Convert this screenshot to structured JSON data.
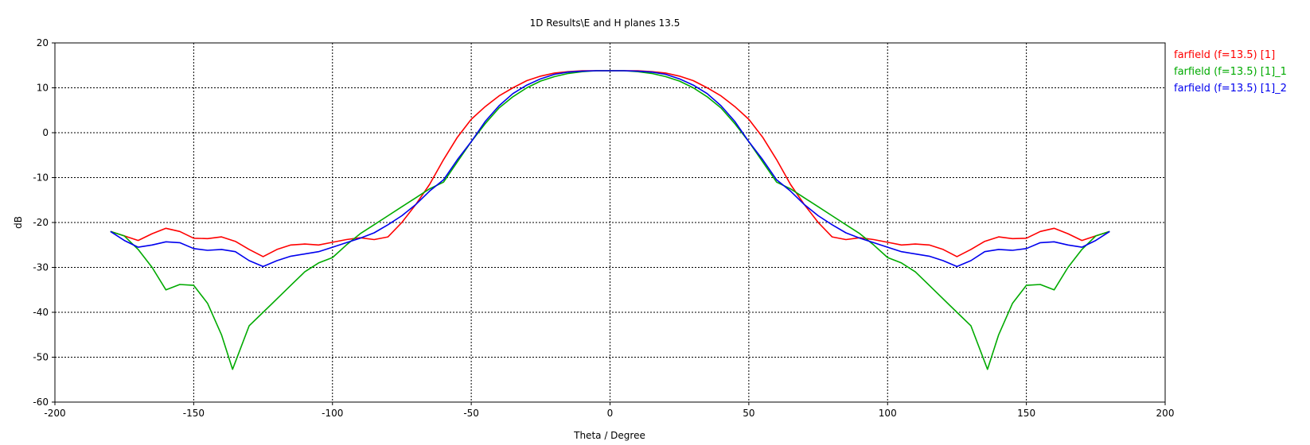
{
  "chart_data": {
    "type": "line",
    "title": "1D Results\\E and H planes 13.5",
    "xlabel": "Theta / Degree",
    "ylabel": "dB",
    "xlim": [
      -200,
      200
    ],
    "ylim": [
      -60,
      20
    ],
    "xticks": [
      -200,
      -150,
      -100,
      -50,
      0,
      50,
      100,
      150,
      200
    ],
    "yticks": [
      20,
      10,
      0,
      -10,
      -20,
      -30,
      -40,
      -50,
      -60
    ],
    "grid": true,
    "legend_position": "right",
    "series": [
      {
        "name": "farfield (f=13.5) [1]",
        "color": "#ff0000",
        "x": [
          -180,
          -175,
          -170,
          -165,
          -160,
          -155,
          -150,
          -145,
          -140,
          -135,
          -130,
          -125,
          -120,
          -115,
          -110,
          -105,
          -100,
          -95,
          -90,
          -85,
          -80,
          -75,
          -70,
          -65,
          -60,
          -55,
          -50,
          -45,
          -40,
          -35,
          -30,
          -25,
          -20,
          -15,
          -10,
          -5,
          0,
          5,
          10,
          15,
          20,
          25,
          30,
          35,
          40,
          45,
          50,
          55,
          60,
          65,
          70,
          75,
          80,
          85,
          90,
          95,
          100,
          105,
          110,
          115,
          120,
          125,
          130,
          135,
          140,
          145,
          150,
          155,
          160,
          165,
          170,
          175,
          180
        ],
        "y": [
          -22,
          -23,
          -24,
          -22.5,
          -21.3,
          -22,
          -23.5,
          -23.6,
          -23.2,
          -24.2,
          -26,
          -27.6,
          -26,
          -25,
          -24.8,
          -25,
          -24.4,
          -23.8,
          -23.4,
          -23.8,
          -23.2,
          -20,
          -16,
          -11.5,
          -6,
          -1,
          3,
          5.8,
          8.2,
          10,
          11.6,
          12.6,
          13.3,
          13.6,
          13.8,
          13.8,
          13.8,
          13.8,
          13.8,
          13.6,
          13.3,
          12.6,
          11.6,
          10,
          8.2,
          5.8,
          3,
          -1,
          -6,
          -11.5,
          -16,
          -20,
          -23.2,
          -23.8,
          -23.4,
          -23.8,
          -24.4,
          -25,
          -24.8,
          -25,
          -26,
          -27.6,
          -26,
          -24.2,
          -23.2,
          -23.6,
          -23.5,
          -22,
          -21.3,
          -22.5,
          -24,
          -23,
          -22
        ]
      },
      {
        "name": "farfield (f=13.5) [1]_1",
        "color": "#00aa00",
        "x": [
          -180,
          -175,
          -170,
          -165,
          -160,
          -155,
          -150,
          -145,
          -140,
          -136,
          -130,
          -125,
          -120,
          -115,
          -110,
          -105,
          -100,
          -95,
          -90,
          -85,
          -80,
          -75,
          -70,
          -65,
          -60,
          -55,
          -50,
          -45,
          -40,
          -35,
          -30,
          -25,
          -20,
          -15,
          -10,
          -5,
          0,
          5,
          10,
          15,
          20,
          25,
          30,
          35,
          40,
          45,
          50,
          55,
          60,
          65,
          70,
          75,
          80,
          85,
          90,
          95,
          100,
          105,
          110,
          115,
          120,
          125,
          130,
          136,
          140,
          145,
          150,
          155,
          160,
          165,
          170,
          175,
          180
        ],
        "y": [
          -22,
          -23,
          -26,
          -30,
          -35,
          -33.8,
          -34,
          -38,
          -45,
          -52.7,
          -43,
          -40,
          -37,
          -34,
          -31,
          -29,
          -27.8,
          -25,
          -22.5,
          -20.5,
          -18.5,
          -16.5,
          -14.5,
          -12.5,
          -11,
          -6.5,
          -2,
          2,
          5.5,
          8,
          10,
          11.5,
          12.5,
          13.2,
          13.6,
          13.8,
          13.8,
          13.8,
          13.6,
          13.2,
          12.5,
          11.5,
          10,
          8,
          5.5,
          2,
          -2,
          -6.5,
          -11,
          -12.5,
          -14.5,
          -16.5,
          -18.5,
          -20.5,
          -22.5,
          -25,
          -27.8,
          -29,
          -31,
          -34,
          -37,
          -40,
          -43,
          -52.7,
          -45,
          -38,
          -34,
          -33.8,
          -35,
          -30,
          -26,
          -23,
          -22
        ]
      },
      {
        "name": "farfield (f=13.5) [1]_2",
        "color": "#0000ee",
        "x": [
          -180,
          -175,
          -170,
          -165,
          -160,
          -155,
          -150,
          -145,
          -140,
          -135,
          -130,
          -125,
          -120,
          -115,
          -110,
          -105,
          -100,
          -95,
          -90,
          -85,
          -80,
          -75,
          -70,
          -65,
          -60,
          -55,
          -50,
          -45,
          -40,
          -35,
          -30,
          -25,
          -20,
          -15,
          -10,
          -5,
          0,
          5,
          10,
          15,
          20,
          25,
          30,
          35,
          40,
          45,
          50,
          55,
          60,
          65,
          70,
          75,
          80,
          85,
          90,
          95,
          100,
          105,
          110,
          115,
          120,
          125,
          130,
          135,
          140,
          145,
          150,
          155,
          160,
          165,
          170,
          175,
          180
        ],
        "y": [
          -22,
          -24,
          -25.5,
          -25,
          -24.3,
          -24.5,
          -25.8,
          -26.2,
          -26,
          -26.5,
          -28.5,
          -29.8,
          -28.5,
          -27.5,
          -27,
          -26.5,
          -25.5,
          -24.5,
          -23.5,
          -22.3,
          -20.5,
          -18.5,
          -16,
          -13,
          -10.5,
          -6,
          -2,
          2.5,
          6,
          8.7,
          10.6,
          12,
          13,
          13.5,
          13.7,
          13.8,
          13.8,
          13.8,
          13.7,
          13.5,
          13,
          12,
          10.6,
          8.7,
          6,
          2.5,
          -2,
          -6,
          -10.5,
          -13,
          -16,
          -18.5,
          -20.5,
          -22.3,
          -23.5,
          -24.5,
          -25.5,
          -26.5,
          -27,
          -27.5,
          -28.5,
          -29.8,
          -28.5,
          -26.5,
          -26,
          -26.2,
          -25.8,
          -24.5,
          -24.3,
          -25,
          -25.5,
          -24,
          -22
        ]
      }
    ]
  }
}
